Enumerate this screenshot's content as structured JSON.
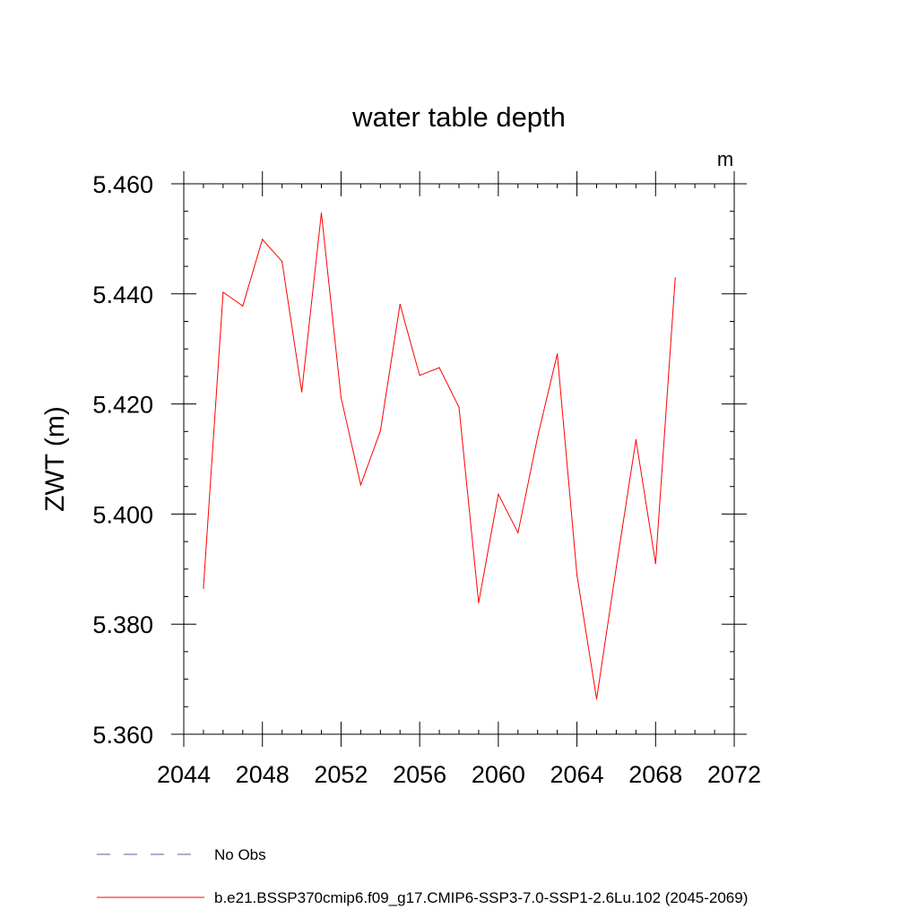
{
  "chart_data": {
    "type": "line",
    "title": "water table depth",
    "units_label": "m",
    "ylabel": "ZWT  (m)",
    "xlabel": "",
    "xlim": [
      2044,
      2072
    ],
    "ylim": [
      5.36,
      5.46
    ],
    "x_ticks": [
      "2044",
      "2048",
      "2052",
      "2056",
      "2060",
      "2064",
      "2068",
      "2072"
    ],
    "y_ticks": [
      "5.360",
      "5.380",
      "5.400",
      "5.420",
      "5.440",
      "5.460"
    ],
    "grid": false,
    "legend_position": "bottom",
    "series": [
      {
        "name": "b.e21.BSSP370cmip6.f09_g17.CMIP6-SSP3-7.0-SSP1-2.6Lu.102 (2045-2069)",
        "color": "#ff0000",
        "style": "solid",
        "x": [
          2045,
          2046,
          2047,
          2048,
          2049,
          2050,
          2051,
          2052,
          2053,
          2054,
          2055,
          2056,
          2057,
          2058,
          2059,
          2060,
          2061,
          2062,
          2063,
          2064,
          2065,
          2066,
          2067,
          2068,
          2069
        ],
        "y": [
          5.3865,
          5.4403,
          5.4378,
          5.4499,
          5.4459,
          5.4222,
          5.4547,
          5.4212,
          5.4053,
          5.4151,
          5.4381,
          5.4252,
          5.4266,
          5.4194,
          5.3839,
          5.4036,
          5.3966,
          5.414,
          5.4291,
          5.3889,
          5.3664,
          5.3903,
          5.4135,
          5.391,
          5.4429
        ]
      }
    ],
    "legend": [
      {
        "label": "No Obs",
        "color": "#5b5baa",
        "style": "dashed"
      },
      {
        "label": "b.e21.BSSP370cmip6.f09_g17.CMIP6-SSP3-7.0-SSP1-2.6Lu.102 (2045-2069)",
        "color": "#ff0000",
        "style": "solid"
      }
    ]
  }
}
